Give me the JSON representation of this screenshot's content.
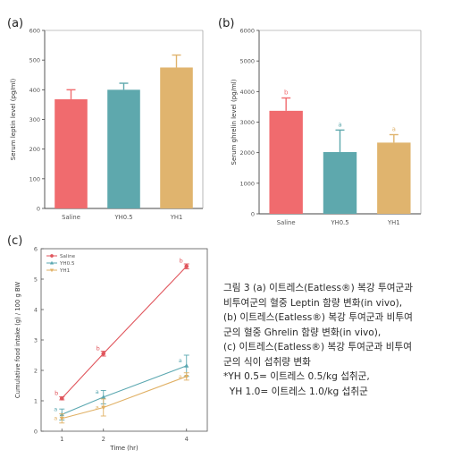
{
  "chart_data": [
    {
      "panel": "(a)",
      "type": "bar",
      "ylabel": "Serum leptin level (pg/ml)",
      "ylim": [
        0,
        600
      ],
      "yticks": [
        "0",
        "100",
        "200",
        "300",
        "400",
        "500",
        "600"
      ],
      "categories": [
        "Saline",
        "YH0.5",
        "YH1"
      ],
      "values": [
        368,
        400,
        475
      ],
      "errors": [
        32,
        22,
        42
      ],
      "colors": [
        "#f06b6e",
        "#5ea8ad",
        "#e0b46e"
      ],
      "letters": [
        "",
        "",
        ""
      ]
    },
    {
      "panel": "(b)",
      "type": "bar",
      "ylabel": "Serum ghrelin level (pg/ml)",
      "ylim": [
        0,
        6000
      ],
      "yticks": [
        "0",
        "1000",
        "2000",
        "3000",
        "4000",
        "5000",
        "6000"
      ],
      "categories": [
        "Saline",
        "YH0.5",
        "YH1"
      ],
      "values": [
        3370,
        2020,
        2330
      ],
      "errors": [
        420,
        720,
        260
      ],
      "colors": [
        "#f06b6e",
        "#5ea8ad",
        "#e0b46e"
      ],
      "letters": [
        "b",
        "a",
        "a"
      ]
    },
    {
      "panel": "(c)",
      "type": "line",
      "ylabel": "Cumulative food intake (g) / 100 g BW",
      "xlabel": "Time (hr)",
      "ylim": [
        0,
        6
      ],
      "yticks": [
        "0",
        "1",
        "2",
        "3",
        "4",
        "5",
        "6"
      ],
      "xlim": [
        0.5,
        4.5
      ],
      "x": [
        1,
        2,
        4
      ],
      "xticks": [
        "1",
        "2",
        "4"
      ],
      "series": [
        {
          "name": "Saline",
          "color": "#e0555c",
          "marker": "circle",
          "values": [
            1.08,
            2.55,
            5.42
          ],
          "errors": [
            0.05,
            0.08,
            0.08
          ],
          "letters": [
            "b",
            "b",
            "b"
          ]
        },
        {
          "name": "YH0.5",
          "color": "#5aa7b0",
          "marker": "triangle",
          "values": [
            0.55,
            1.12,
            2.15
          ],
          "errors": [
            0.18,
            0.22,
            0.35
          ],
          "letters": [
            "a",
            "a",
            "a"
          ]
        },
        {
          "name": "YH1",
          "color": "#e0b064",
          "marker": "triangle-down",
          "values": [
            0.42,
            0.78,
            1.8
          ],
          "errors": [
            0.15,
            0.28,
            0.12
          ],
          "letters": [
            "a",
            "a",
            "a"
          ]
        }
      ]
    }
  ],
  "caption": {
    "lines": [
      "그림 3 (a) 이트레스(Eatless®) 복강 투여군과",
      "비투여군의 혈중 Leptin 함량 변화(in vivo),",
      "(b) 이트레스(Eatless®) 복강 투여군과 비투여",
      "군의 혈중 Ghrelin 함량 변화(in vivo),",
      "(c) 이트레스(Eatless®) 복강 투여군과 비투여",
      "군의 식이 섭취량 변화",
      "*YH 0.5= 이트레스 0.5/kg 섭취군,",
      "  YH 1.0= 이트레스 1.0/kg 섭취군"
    ]
  }
}
